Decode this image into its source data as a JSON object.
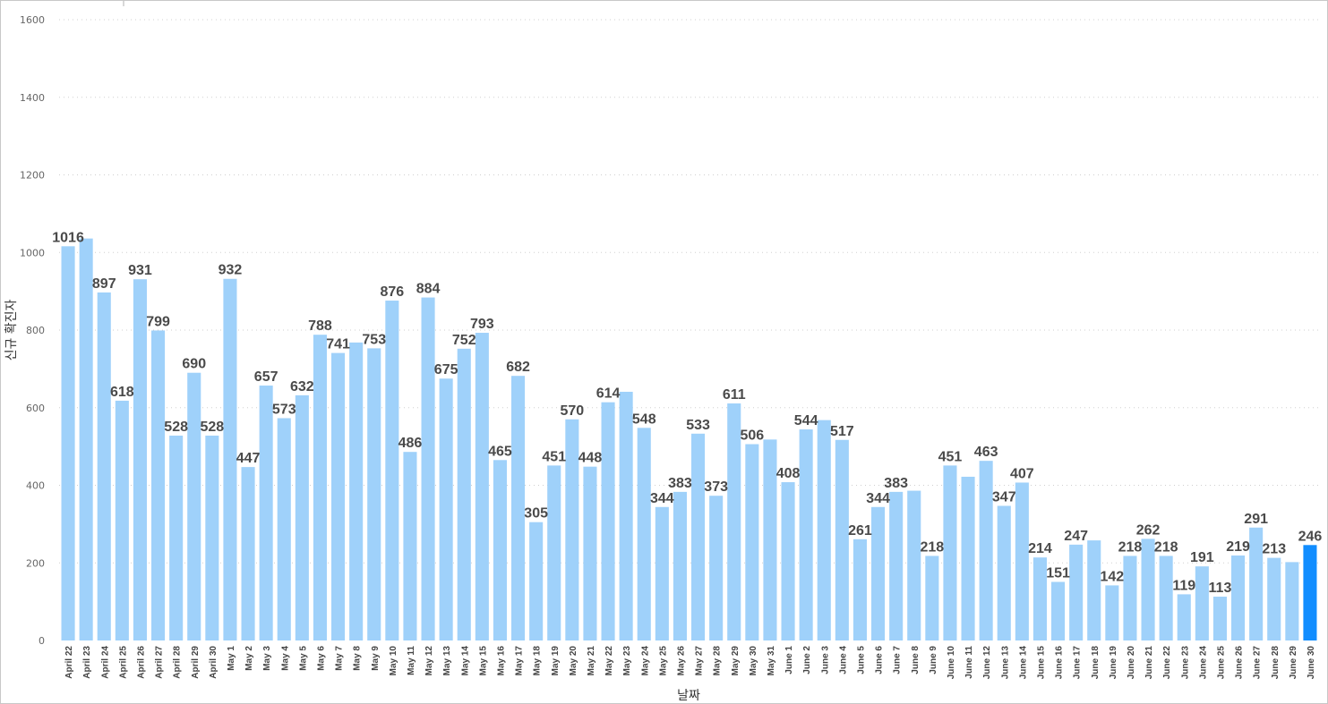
{
  "colors": {
    "bar": "#9fd1fa",
    "bar_highlight": "#118dff",
    "grid": "#cfcfcf",
    "label": "#4a4a4a"
  },
  "chart_data": {
    "type": "bar",
    "title": "",
    "xlabel": "날짜",
    "ylabel": "신규 확진자",
    "ylim": [
      0,
      1600
    ],
    "yticks": [
      0,
      200,
      400,
      600,
      800,
      1000,
      1200,
      1400,
      1600
    ],
    "grid": true,
    "highlight_index": 69,
    "categories": [
      "April 22",
      "April 23",
      "April 24",
      "April 25",
      "April 26",
      "April 27",
      "April 28",
      "April 29",
      "April 30",
      "May 1",
      "May 2",
      "May 3",
      "May 4",
      "May 5",
      "May 6",
      "May 7",
      "May 8",
      "May 9",
      "May 10",
      "May 11",
      "May 12",
      "May 13",
      "May 14",
      "May 15",
      "May 16",
      "May 17",
      "May 18",
      "May 19",
      "May 20",
      "May 21",
      "May 22",
      "May 23",
      "May 24",
      "May 25",
      "May 26",
      "May 27",
      "May 28",
      "May 29",
      "May 30",
      "May 31",
      "June 1",
      "June 2",
      "June 3",
      "June 4",
      "June 5",
      "June 6",
      "June 7",
      "June 8",
      "June 9",
      "June 10",
      "June 11",
      "June 12",
      "June 13",
      "June 14",
      "June 15",
      "June 16",
      "June 17",
      "June 18",
      "June 19",
      "June 20",
      "June 21",
      "June 22",
      "June 23",
      "June 24",
      "June 25",
      "June 26",
      "June 27",
      "June 28",
      "June 29",
      "June 30"
    ],
    "values": [
      1016,
      1036,
      897,
      618,
      931,
      799,
      528,
      690,
      528,
      932,
      447,
      657,
      573,
      632,
      788,
      741,
      768,
      753,
      876,
      486,
      884,
      675,
      752,
      793,
      465,
      682,
      305,
      451,
      570,
      448,
      614,
      641,
      548,
      344,
      383,
      533,
      373,
      611,
      506,
      518,
      408,
      544,
      568,
      517,
      261,
      344,
      383,
      386,
      218,
      451,
      422,
      463,
      347,
      407,
      214,
      151,
      247,
      258,
      142,
      218,
      262,
      218,
      119,
      191,
      113,
      219,
      291,
      213,
      202,
      246
    ],
    "data_labels": [
      "1016",
      "",
      "897",
      "618",
      "931",
      "799",
      "528",
      "690",
      "528",
      "932",
      "447",
      "657",
      "573",
      "632",
      "788",
      "741",
      "",
      "753",
      "876",
      "486",
      "884",
      "675",
      "752",
      "793",
      "465",
      "682",
      "305",
      "451",
      "570",
      "448",
      "614",
      "",
      "548",
      "344",
      "383",
      "533",
      "373",
      "611",
      "506",
      "",
      "408",
      "544",
      "",
      "517",
      "261",
      "344",
      "383",
      "",
      "218",
      "451",
      "",
      "463",
      "347",
      "407",
      "214",
      "151",
      "247",
      "",
      "142",
      "218",
      "262",
      "218",
      "119",
      "191",
      "113",
      "219",
      "291",
      "213",
      "",
      "246"
    ]
  }
}
